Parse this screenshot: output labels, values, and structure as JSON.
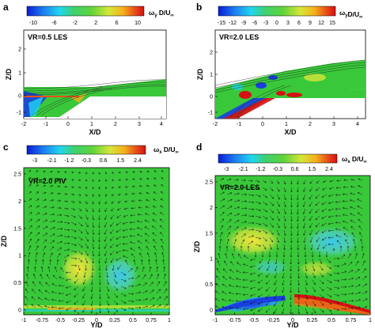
{
  "panels": [
    {
      "letter": "a",
      "colorbar": {
        "ticks": [
          "-10",
          "-6",
          "-2",
          "2",
          "6",
          "10"
        ],
        "title_main": "ω",
        "title_sub": "y",
        "title_rest": "D/U",
        "title_inf": "∞"
      },
      "caption": "VR=0.5 LES",
      "xlabel": "X/D",
      "ylabel": "Z/D",
      "xticks": [
        "-2",
        "-1",
        "0",
        "1",
        "2",
        "3",
        "4"
      ],
      "yticks": [
        "-1",
        "0",
        "1",
        "2"
      ]
    },
    {
      "letter": "b",
      "colorbar": {
        "ticks": [
          "-15",
          "-12",
          "-9",
          "-6",
          "-3",
          "0",
          "3",
          "6",
          "9",
          "12",
          "15"
        ],
        "title_main": "ω",
        "title_sub": "y",
        "title_rest": "D/U",
        "title_inf": "∞"
      },
      "caption": "VR=2.0 LES",
      "xlabel": "X/D",
      "ylabel": "Z/D",
      "xticks": [
        "-2",
        "-1",
        "0",
        "1",
        "2",
        "3",
        "4"
      ],
      "yticks": [
        "-1",
        "0",
        "1",
        "2"
      ]
    },
    {
      "letter": "c",
      "colorbar": {
        "ticks": [
          "-3",
          "-2.1",
          "-1.2",
          "-0.3",
          "0.6",
          "1.5",
          "2.4"
        ],
        "title_main": "ω",
        "title_sub": "x",
        "title_rest": "D/U",
        "title_inf": "∞"
      },
      "caption": "VR=2.0 PIV",
      "xlabel": "Y/D",
      "ylabel": "Z/D",
      "xticks": [
        "-1",
        "-0.75",
        "-0.5",
        "-0.25",
        "0",
        "0.25",
        "0.5",
        "0.75",
        "1"
      ],
      "yticks": [
        "0",
        "0.5",
        "1",
        "1.5",
        "2",
        "2.5"
      ]
    },
    {
      "letter": "d",
      "colorbar": {
        "ticks": [
          "-3",
          "-2.1",
          "-1.2",
          "-0.3",
          "0.6",
          "1.5",
          "2.4"
        ],
        "title_main": "ω",
        "title_sub": "x",
        "title_rest": "D/U",
        "title_inf": "∞"
      },
      "caption": "VR=2.0 LES",
      "xlabel": "Y/D",
      "ylabel": "Z/D",
      "xticks": [
        "-1",
        "-0.75",
        "-0.5",
        "-0.25",
        "0",
        "0.25",
        "0.5",
        "0.75",
        "1"
      ],
      "yticks": [
        "0",
        "0.5",
        "1",
        "1.5",
        "2",
        "2.5"
      ]
    }
  ],
  "colors": {
    "background_field": "#39c83a",
    "colormap": [
      "#0a1cd8",
      "#1d7ef0",
      "#21d6f0",
      "#3fd070",
      "#5fd43a",
      "#d6e63a",
      "#f5b11b",
      "#e8501a",
      "#d60f12"
    ]
  }
}
